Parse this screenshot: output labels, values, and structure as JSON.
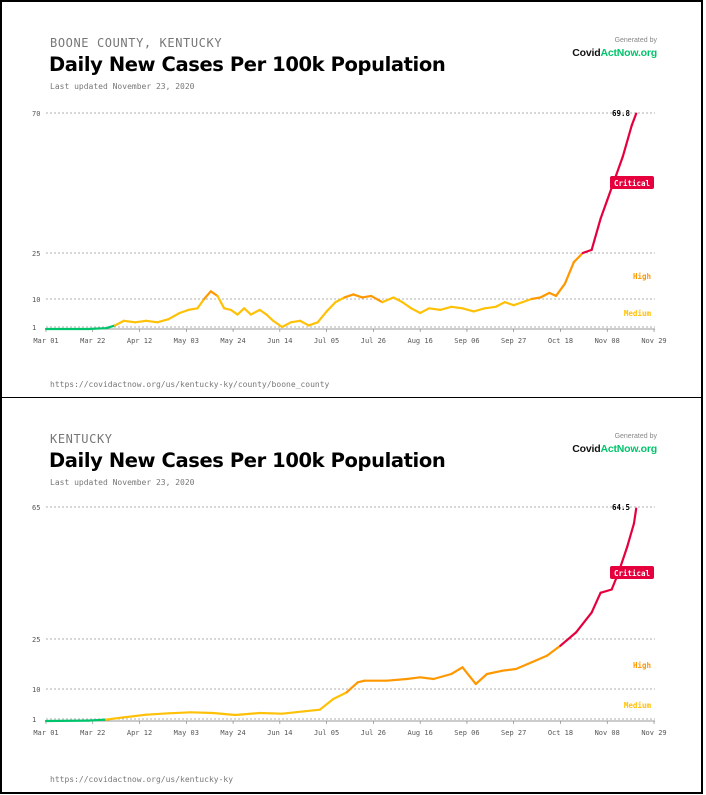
{
  "logo": {
    "generated_by": "Generated by",
    "brand_prefix": "Covid",
    "brand_accent": "ActNow.org"
  },
  "colors": {
    "critical": "#e5003d",
    "high": "#ff9800",
    "medium": "#ffc107",
    "low": "#00c46b",
    "grid": "#999999"
  },
  "panels": [
    {
      "region": "BOONE COUNTY, KENTUCKY",
      "title": "Daily New Cases Per 100k Population",
      "updated": "Last updated November 23, 2020",
      "url": "https://covidactnow.org/us/kentucky-ky/county/boone_county",
      "last_value_label": "69.8",
      "zone_labels": {
        "critical": "Critical",
        "high": "High",
        "medium": "Medium"
      }
    },
    {
      "region": "KENTUCKY",
      "title": "Daily New Cases Per 100k Population",
      "updated": "Last updated November 23, 2020",
      "url": "https://covidactnow.org/us/kentucky-ky",
      "last_value_label": "64.5",
      "zone_labels": {
        "critical": "Critical",
        "high": "High",
        "medium": "Medium"
      }
    }
  ],
  "chart_data": [
    {
      "type": "line",
      "title": "Daily New Cases Per 100k Population",
      "x_ticks": [
        "Mar 01",
        "Mar 22",
        "Apr 12",
        "May 03",
        "May 24",
        "Jun 14",
        "Jul 05",
        "Jul 26",
        "Aug 16",
        "Sep 06",
        "Sep 27",
        "Oct 18",
        "Nov 08",
        "Nov 29"
      ],
      "y_ticks": [
        1,
        10,
        25,
        70
      ],
      "xlim": [
        "2020-03-01",
        "2020-11-29"
      ],
      "scale": "piecewise",
      "grid": true,
      "series": [
        {
          "points": [
            [
              "2020-03-01",
              0
            ],
            [
              "2020-03-20",
              0
            ],
            [
              "2020-03-28",
              0.4
            ],
            [
              "2020-04-01",
              1.5
            ],
            [
              "2020-04-05",
              3
            ],
            [
              "2020-04-10",
              2.5
            ],
            [
              "2020-04-15",
              3
            ],
            [
              "2020-04-20",
              2.5
            ],
            [
              "2020-04-25",
              3.5
            ],
            [
              "2020-04-30",
              5.5
            ],
            [
              "2020-05-04",
              6.5
            ],
            [
              "2020-05-08",
              7
            ],
            [
              "2020-05-11",
              10
            ],
            [
              "2020-05-14",
              12.5
            ],
            [
              "2020-05-17",
              11
            ],
            [
              "2020-05-20",
              7
            ],
            [
              "2020-05-23",
              6.5
            ],
            [
              "2020-05-26",
              5
            ],
            [
              "2020-05-29",
              7
            ],
            [
              "2020-06-01",
              5
            ],
            [
              "2020-06-05",
              6.5
            ],
            [
              "2020-06-08",
              5
            ],
            [
              "2020-06-11",
              3
            ],
            [
              "2020-06-15",
              1
            ],
            [
              "2020-06-19",
              2.5
            ],
            [
              "2020-06-23",
              3
            ],
            [
              "2020-06-27",
              1.5
            ],
            [
              "2020-07-01",
              2.5
            ],
            [
              "2020-07-05",
              6
            ],
            [
              "2020-07-09",
              9
            ],
            [
              "2020-07-13",
              10.5
            ],
            [
              "2020-07-17",
              11.5
            ],
            [
              "2020-07-21",
              10.5
            ],
            [
              "2020-07-25",
              11
            ],
            [
              "2020-07-30",
              9
            ],
            [
              "2020-08-04",
              10.5
            ],
            [
              "2020-08-08",
              9
            ],
            [
              "2020-08-12",
              7
            ],
            [
              "2020-08-16",
              5.5
            ],
            [
              "2020-08-20",
              7
            ],
            [
              "2020-08-25",
              6.5
            ],
            [
              "2020-08-30",
              7.5
            ],
            [
              "2020-09-04",
              7
            ],
            [
              "2020-09-09",
              6
            ],
            [
              "2020-09-14",
              7
            ],
            [
              "2020-09-19",
              7.5
            ],
            [
              "2020-09-23",
              9
            ],
            [
              "2020-09-27",
              8
            ],
            [
              "2020-10-01",
              9
            ],
            [
              "2020-10-05",
              10
            ],
            [
              "2020-10-09",
              10.5
            ],
            [
              "2020-10-13",
              12
            ],
            [
              "2020-10-16",
              11
            ],
            [
              "2020-10-20",
              15
            ],
            [
              "2020-10-24",
              22
            ],
            [
              "2020-10-28",
              25
            ],
            [
              "2020-11-01",
              26
            ],
            [
              "2020-11-05",
              36
            ],
            [
              "2020-11-08",
              42
            ],
            [
              "2020-11-12",
              50
            ],
            [
              "2020-11-15",
              56
            ],
            [
              "2020-11-19",
              66
            ],
            [
              "2020-11-21",
              69.8
            ]
          ]
        }
      ],
      "last_label": "69.8",
      "zones": [
        "Critical",
        "High",
        "Medium"
      ]
    },
    {
      "type": "line",
      "title": "Daily New Cases Per 100k Population",
      "x_ticks": [
        "Mar 01",
        "Mar 22",
        "Apr 12",
        "May 03",
        "May 24",
        "Jun 14",
        "Jul 05",
        "Jul 26",
        "Aug 16",
        "Sep 06",
        "Sep 27",
        "Oct 18",
        "Nov 08",
        "Nov 29"
      ],
      "y_ticks": [
        1,
        10,
        25,
        65
      ],
      "xlim": [
        "2020-03-01",
        "2020-11-29"
      ],
      "scale": "piecewise",
      "grid": true,
      "series": [
        {
          "points": [
            [
              "2020-03-01",
              0
            ],
            [
              "2020-03-20",
              0.2
            ],
            [
              "2020-03-28",
              0.7
            ],
            [
              "2020-04-05",
              1.5
            ],
            [
              "2020-04-15",
              2.3
            ],
            [
              "2020-04-25",
              2.7
            ],
            [
              "2020-05-05",
              3
            ],
            [
              "2020-05-15",
              2.8
            ],
            [
              "2020-05-25",
              2.2
            ],
            [
              "2020-06-05",
              2.8
            ],
            [
              "2020-06-15",
              2.6
            ],
            [
              "2020-06-25",
              3.3
            ],
            [
              "2020-07-02",
              3.8
            ],
            [
              "2020-07-08",
              7
            ],
            [
              "2020-07-14",
              9
            ],
            [
              "2020-07-19",
              12
            ],
            [
              "2020-07-22",
              12.5
            ],
            [
              "2020-08-01",
              12.5
            ],
            [
              "2020-08-10",
              13
            ],
            [
              "2020-08-16",
              13.5
            ],
            [
              "2020-08-22",
              13
            ],
            [
              "2020-08-30",
              14.5
            ],
            [
              "2020-09-04",
              16.5
            ],
            [
              "2020-09-07",
              14
            ],
            [
              "2020-09-10",
              11.5
            ],
            [
              "2020-09-15",
              14.5
            ],
            [
              "2020-09-22",
              15.5
            ],
            [
              "2020-09-28",
              16
            ],
            [
              "2020-10-05",
              18
            ],
            [
              "2020-10-12",
              20
            ],
            [
              "2020-10-18",
              23
            ],
            [
              "2020-10-25",
              27
            ],
            [
              "2020-11-01",
              33
            ],
            [
              "2020-11-05",
              39
            ],
            [
              "2020-11-10",
              40
            ],
            [
              "2020-11-13",
              45
            ],
            [
              "2020-11-17",
              53
            ],
            [
              "2020-11-20",
              60
            ],
            [
              "2020-11-21",
              64.5
            ]
          ]
        }
      ],
      "last_label": "64.5",
      "zones": [
        "Critical",
        "High",
        "Medium"
      ]
    }
  ]
}
